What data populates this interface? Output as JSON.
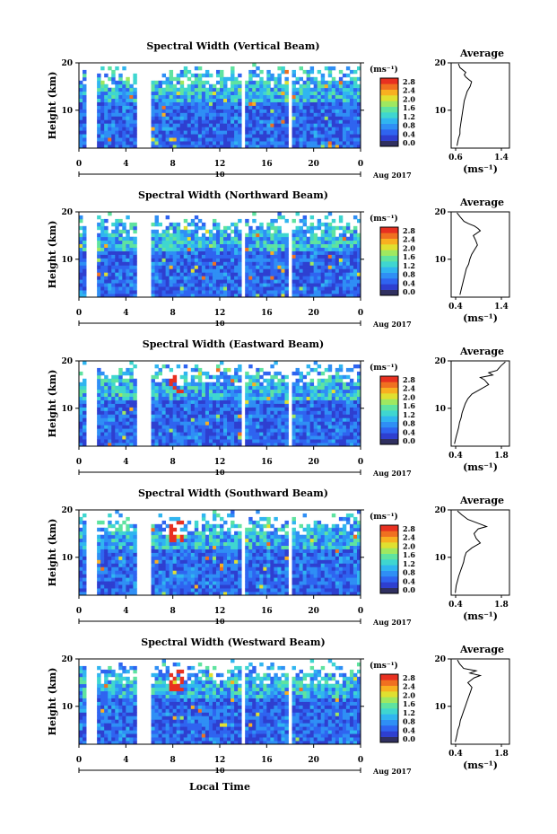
{
  "footer": {
    "xlabel": "Local Time"
  },
  "colorbar": {
    "unit": "(ms⁻¹)",
    "ticks": [
      "2.8",
      "2.4",
      "2.0",
      "1.6",
      "1.2",
      "0.8",
      "0.4",
      "0.0"
    ],
    "colors": [
      "#303060",
      "#2e3fd0",
      "#2f64f0",
      "#2f8ff5",
      "#30b5f0",
      "#3fd6d0",
      "#5fe3a0",
      "#9fe860",
      "#e0e030",
      "#f8b020",
      "#f07020",
      "#e83020"
    ]
  },
  "chart_data": [
    {
      "type": "heatmap",
      "title": "Spectral Width (Vertical Beam)",
      "ylabel": "Height (km)",
      "xlim": [
        0,
        24
      ],
      "ylim": [
        2,
        20
      ],
      "xticks": [
        "0",
        "4",
        "8",
        "12",
        "16",
        "20",
        "0"
      ],
      "yticks": [
        "10",
        "20"
      ],
      "date_day": "10",
      "date_label": "Aug 2017",
      "gaps": [
        [
          0.6,
          1.6
        ],
        [
          4.9,
          6.0
        ],
        [
          13.8,
          14.1
        ],
        [
          17.8,
          18.2
        ]
      ],
      "profile": {
        "title": "Average",
        "xlabel": "(ms⁻¹)",
        "xlim": [
          0.6,
          1.4
        ],
        "xticks": [
          "0.6",
          "1.4"
        ],
        "yticks": [
          "10",
          "20"
        ],
        "x": [
          0.68,
          0.7,
          0.72,
          0.72,
          0.73,
          0.74,
          0.75,
          0.76,
          0.77,
          0.78,
          0.8,
          0.82,
          0.86,
          0.88,
          0.84,
          0.8,
          0.78,
          0.8,
          0.72,
          0.7
        ],
        "y": [
          2.5,
          4,
          5,
          6,
          7,
          8,
          9,
          10,
          11,
          12,
          13,
          14,
          15,
          16,
          16.5,
          17,
          17.5,
          18,
          19,
          19.8
        ]
      }
    },
    {
      "type": "heatmap",
      "title": "Spectral Width (Northward Beam)",
      "ylabel": "Height (km)",
      "xlim": [
        0,
        24
      ],
      "ylim": [
        2,
        20
      ],
      "xticks": [
        "0",
        "4",
        "8",
        "12",
        "16",
        "20",
        "0"
      ],
      "yticks": [
        "10",
        "20"
      ],
      "date_day": "10",
      "date_label": "Aug 2017",
      "gaps": [
        [
          0.6,
          1.6
        ],
        [
          4.9,
          6.0
        ],
        [
          13.8,
          14.1
        ],
        [
          17.8,
          18.2
        ]
      ],
      "profile": {
        "title": "Average",
        "xlabel": "(ms⁻¹)",
        "xlim": [
          0.4,
          1.4
        ],
        "xticks": [
          "0.4",
          "1.4"
        ],
        "yticks": [
          "10",
          "20"
        ],
        "x": [
          0.55,
          0.58,
          0.6,
          0.62,
          0.64,
          0.66,
          0.7,
          0.72,
          0.75,
          0.8,
          0.85,
          0.82,
          0.78,
          0.9,
          0.86,
          0.8,
          0.7,
          0.62,
          0.55,
          0.5
        ],
        "y": [
          2.5,
          4,
          5,
          6,
          7,
          8,
          9,
          10,
          11,
          12,
          13,
          14,
          15,
          16,
          16.5,
          17,
          17.5,
          18,
          19,
          19.8
        ]
      }
    },
    {
      "type": "heatmap",
      "title": "Spectral Width (Eastward Beam)",
      "ylabel": "Height (km)",
      "xlim": [
        0,
        24
      ],
      "ylim": [
        2,
        20
      ],
      "xticks": [
        "0",
        "4",
        "8",
        "12",
        "16",
        "20",
        "0"
      ],
      "yticks": [
        "10",
        "20"
      ],
      "date_day": "10",
      "date_label": "Aug 2017",
      "gaps": [
        [
          0.6,
          1.6
        ],
        [
          4.9,
          6.0
        ],
        [
          13.8,
          14.1
        ],
        [
          17.8,
          18.2
        ]
      ],
      "profile": {
        "title": "Average",
        "xlabel": "(ms⁻¹)",
        "xlim": [
          0.4,
          1.8
        ],
        "xticks": [
          "0.4",
          "1.8"
        ],
        "yticks": [
          "10",
          "20"
        ],
        "x": [
          0.48,
          0.52,
          0.55,
          0.58,
          0.6,
          0.64,
          0.66,
          0.7,
          0.74,
          0.8,
          0.9,
          1.1,
          1.3,
          1.2,
          1.1,
          1.4,
          1.3,
          1.5,
          1.6,
          1.7
        ],
        "y": [
          2.5,
          4,
          5,
          6,
          7,
          8,
          9,
          10,
          11,
          12,
          13,
          14,
          15,
          16,
          16.5,
          17,
          17.5,
          18,
          19,
          19.8
        ]
      }
    },
    {
      "type": "heatmap",
      "title": "Spectral Width (Southward Beam)",
      "ylabel": "Height (km)",
      "xlim": [
        0,
        24
      ],
      "ylim": [
        2,
        20
      ],
      "xticks": [
        "0",
        "4",
        "8",
        "12",
        "16",
        "20",
        "0"
      ],
      "yticks": [
        "10",
        "20"
      ],
      "date_day": "10",
      "date_label": "Aug 2017",
      "gaps": [
        [
          0.6,
          1.6
        ],
        [
          4.9,
          6.0
        ],
        [
          13.8,
          14.1
        ],
        [
          17.8,
          18.2
        ]
      ],
      "profile": {
        "title": "Average",
        "xlabel": "(ms⁻¹)",
        "xlim": [
          0.4,
          1.8
        ],
        "xticks": [
          "0.4",
          "1.8"
        ],
        "yticks": [
          "10",
          "20"
        ],
        "x": [
          0.5,
          0.52,
          0.55,
          0.58,
          0.62,
          0.66,
          0.7,
          0.72,
          0.76,
          0.9,
          1.1,
          1.0,
          0.95,
          1.05,
          1.25,
          1.1,
          0.95,
          0.8,
          0.65,
          0.55
        ],
        "y": [
          2.5,
          4,
          5,
          6,
          7,
          8,
          9,
          10,
          11,
          12,
          13,
          14,
          15,
          16,
          16.5,
          17,
          17.5,
          18,
          19,
          19.8
        ]
      }
    },
    {
      "type": "heatmap",
      "title": "Spectral Width (Westward Beam)",
      "ylabel": "Height (km)",
      "xlim": [
        0,
        24
      ],
      "ylim": [
        2,
        20
      ],
      "xticks": [
        "0",
        "4",
        "8",
        "12",
        "16",
        "20",
        "0"
      ],
      "yticks": [
        "10",
        "20"
      ],
      "date_day": "10",
      "date_label": "Aug 2017",
      "gaps": [
        [
          0.6,
          1.6
        ],
        [
          4.9,
          6.0
        ],
        [
          13.8,
          14.1
        ],
        [
          17.8,
          18.2
        ]
      ],
      "profile": {
        "title": "Average",
        "xlabel": "(ms⁻¹)",
        "xlim": [
          0.4,
          1.8
        ],
        "xticks": [
          "0.4",
          "1.8"
        ],
        "yticks": [
          "10",
          "20"
        ],
        "x": [
          0.5,
          0.54,
          0.56,
          0.6,
          0.62,
          0.66,
          0.7,
          0.74,
          0.78,
          0.82,
          0.86,
          0.9,
          0.8,
          0.95,
          1.1,
          0.85,
          1.0,
          0.7,
          0.6,
          0.55
        ],
        "y": [
          2.5,
          4,
          5,
          6,
          7,
          8,
          9,
          10,
          11,
          12,
          13,
          14,
          15,
          16,
          16.5,
          17,
          17.5,
          18,
          19,
          19.8
        ]
      }
    }
  ]
}
